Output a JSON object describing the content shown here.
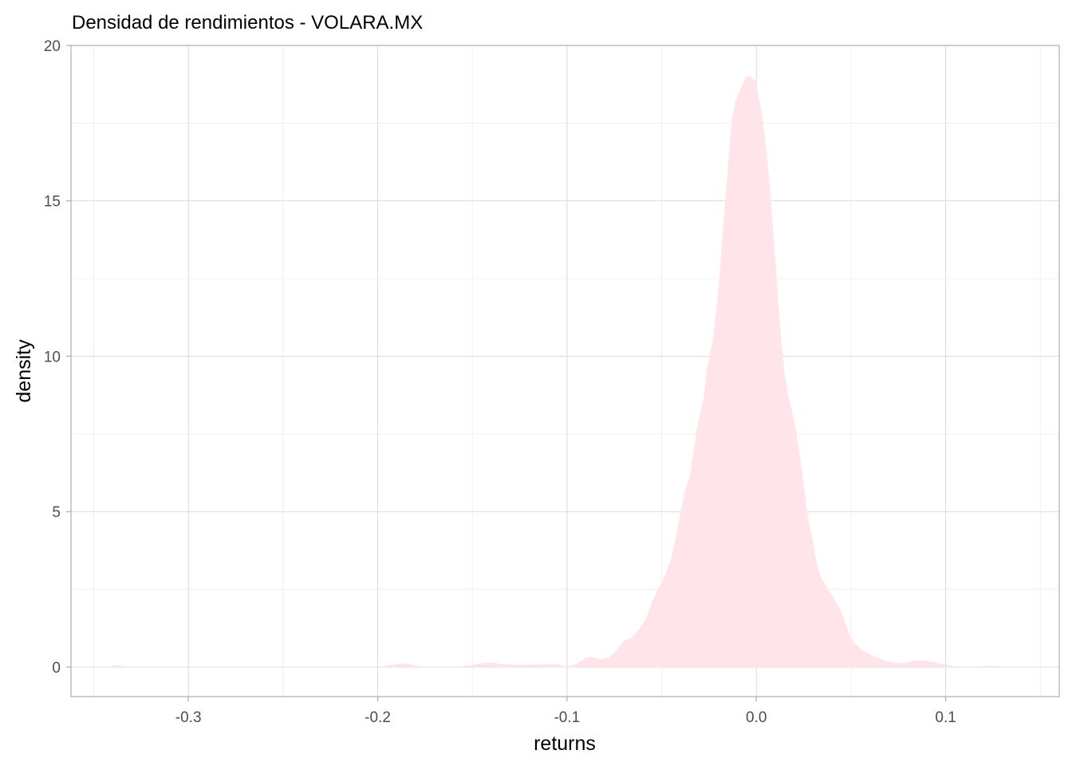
{
  "chart_data": {
    "type": "area",
    "title": "Densidad de rendimientos - VOLARA.MX",
    "xlabel": "returns",
    "ylabel": "density",
    "xlim": [
      -0.362,
      0.16
    ],
    "ylim": [
      -0.95,
      20.0
    ],
    "x_ticks": [
      -0.3,
      -0.2,
      -0.1,
      0.0,
      0.1
    ],
    "x_tick_labels": [
      "-0.3",
      "-0.2",
      "-0.1",
      "0.0",
      "0.1"
    ],
    "y_ticks": [
      0,
      5,
      10,
      15,
      20
    ],
    "y_tick_labels": [
      "0",
      "5",
      "10",
      "15",
      "20"
    ],
    "grid": true,
    "fill_color": "#ffe4e9",
    "series": [
      {
        "x": [
          -0.343,
          -0.339,
          -0.336,
          -0.333,
          -0.33,
          -0.2,
          -0.192,
          -0.186,
          -0.182,
          -0.176,
          -0.16,
          -0.152,
          -0.145,
          -0.14,
          -0.135,
          -0.125,
          -0.115,
          -0.108,
          -0.104,
          -0.1,
          -0.095,
          -0.09,
          -0.087,
          -0.082,
          -0.078,
          -0.074,
          -0.07,
          -0.066,
          -0.062,
          -0.058,
          -0.055,
          -0.052,
          -0.05,
          -0.048,
          -0.045,
          -0.042,
          -0.04,
          -0.038,
          -0.035,
          -0.033,
          -0.031,
          -0.028,
          -0.026,
          -0.023,
          -0.021,
          -0.019,
          -0.017,
          -0.015,
          -0.013,
          -0.011,
          -0.009,
          -0.007,
          -0.005,
          -0.003,
          -0.001,
          0.0,
          0.001,
          0.003,
          0.005,
          0.007,
          0.009,
          0.011,
          0.013,
          0.015,
          0.017,
          0.019,
          0.021,
          0.023,
          0.025,
          0.027,
          0.03,
          0.032,
          0.034,
          0.036,
          0.038,
          0.04,
          0.042,
          0.044,
          0.046,
          0.048,
          0.05,
          0.053,
          0.056,
          0.059,
          0.062,
          0.065,
          0.068,
          0.072,
          0.076,
          0.08,
          0.085,
          0.09,
          0.095,
          0.1,
          0.105,
          0.11,
          0.115,
          0.12,
          0.125,
          0.13,
          0.133,
          0.136
        ],
        "y": [
          0,
          0.05,
          0.05,
          0.02,
          0,
          0,
          0.07,
          0.12,
          0.08,
          0,
          0,
          0.05,
          0.12,
          0.15,
          0.1,
          0.07,
          0.08,
          0.1,
          0.08,
          0.02,
          0.1,
          0.3,
          0.32,
          0.25,
          0.3,
          0.5,
          0.85,
          0.95,
          1.2,
          1.6,
          2.1,
          2.5,
          2.7,
          3.0,
          3.5,
          4.3,
          5.0,
          5.6,
          6.2,
          7.0,
          7.8,
          8.6,
          9.6,
          10.5,
          11.6,
          12.9,
          14.6,
          16.1,
          17.6,
          18.2,
          18.5,
          18.8,
          19.0,
          19.0,
          18.9,
          18.7,
          18.4,
          17.8,
          16.8,
          15.6,
          14.0,
          12.3,
          10.6,
          9.4,
          8.7,
          8.2,
          7.6,
          6.8,
          5.9,
          4.9,
          4.0,
          3.3,
          2.9,
          2.7,
          2.5,
          2.3,
          2.1,
          1.9,
          1.6,
          1.25,
          0.95,
          0.7,
          0.55,
          0.45,
          0.35,
          0.28,
          0.2,
          0.14,
          0.12,
          0.16,
          0.22,
          0.2,
          0.15,
          0.07,
          0.02,
          0,
          0,
          0.03,
          0.05,
          0.02,
          0.0,
          0.0
        ]
      }
    ]
  }
}
